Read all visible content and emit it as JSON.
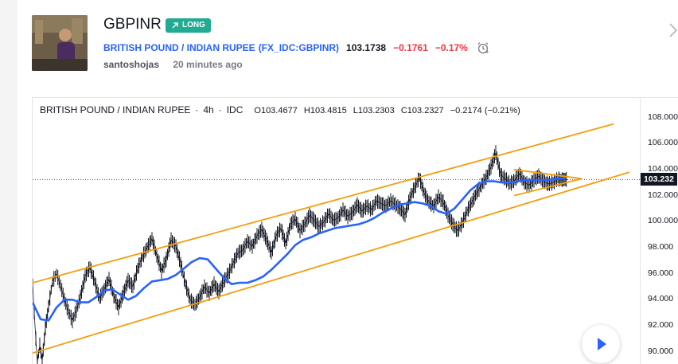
{
  "idea": {
    "title": "GBPINR",
    "badge": "LONG",
    "symbol_name": "BRITISH POUND / INDIAN RUPEE",
    "symbol_code": "(FX_IDC:GBPINR)",
    "price": "103.1738",
    "change": "−0.1761",
    "change_pct": "−0.17%",
    "author": "santoshojas",
    "posted": "20 minutes ago"
  },
  "chart": {
    "name": "BRITISH POUND / INDIAN RUPEE",
    "sep": "·",
    "interval": "4h",
    "source": "IDC",
    "open": "O103.4677",
    "high": "H103.4815",
    "low": "L103.2303",
    "close": "C103.2327",
    "chg": "−0.2174 (−0.21%)",
    "last_price_label": "103.232",
    "y_ticks": [
      "108.000",
      "106.000",
      "104.000",
      "102.000",
      "100.000",
      "98.000",
      "96.000",
      "94.000",
      "92.000",
      "90.000"
    ],
    "colors": {
      "channel": "#f59d0c",
      "ma": "#2962ff",
      "candles": "#131722",
      "down": "#f23645",
      "long_badge": "#22ab94",
      "link": "#2962ff"
    }
  },
  "chart_data": {
    "type": "line",
    "title": "BRITISH POUND / INDIAN RUPEE · 4h · IDC",
    "xlabel": "",
    "ylabel": "",
    "ylim": [
      89,
      109.5
    ],
    "grid": false,
    "series": [
      {
        "x": [
          0,
          2,
          4,
          6,
          9,
          12,
          16,
          20,
          25,
          30,
          35,
          40,
          45,
          50,
          55,
          60,
          66,
          72,
          78,
          84,
          90,
          96,
          102,
          108,
          114,
          120,
          126,
          132,
          138,
          144,
          150,
          156,
          162,
          168,
          174,
          180,
          186,
          192,
          198,
          204,
          210,
          216,
          222,
          228,
          234,
          240,
          246,
          252,
          258,
          264,
          270,
          276,
          282,
          288,
          294,
          300,
          306,
          312,
          318,
          324,
          330,
          336,
          342,
          348,
          354,
          360,
          366,
          372,
          378,
          384,
          390,
          396,
          402,
          408,
          414,
          420,
          426,
          432,
          438,
          444,
          450,
          456,
          462,
          468,
          474,
          480,
          486,
          492,
          498,
          504,
          510,
          516,
          522,
          528,
          534,
          540,
          546,
          552,
          558,
          564,
          570,
          576,
          582,
          588,
          594,
          600,
          606,
          612,
          618,
          624,
          630,
          636,
          642,
          648,
          654,
          660,
          664,
          668,
          672
        ],
        "values": [
          95.2,
          93.0,
          91.0,
          89.2,
          90.5,
          89.3,
          91.8,
          93.5,
          95.4,
          96.0,
          95.1,
          94.0,
          93.1,
          92.4,
          93.2,
          94.2,
          95.8,
          96.5,
          95.4,
          94.1,
          94.8,
          95.6,
          94.3,
          93.4,
          94.5,
          95.5,
          95.0,
          96.4,
          97.3,
          98.0,
          98.7,
          97.4,
          96.2,
          97.1,
          98.6,
          98.1,
          96.8,
          95.2,
          94.0,
          93.6,
          94.2,
          95.0,
          94.5,
          95.2,
          94.6,
          95.4,
          96.0,
          96.8,
          97.6,
          97.8,
          98.5,
          98.1,
          98.9,
          99.4,
          98.6,
          97.6,
          98.9,
          99.5,
          98.3,
          99.8,
          100.2,
          99.3,
          99.8,
          100.5,
          100.1,
          99.6,
          100.0,
          100.6,
          100.1,
          100.3,
          100.9,
          100.4,
          100.7,
          101.3,
          100.8,
          101.2,
          100.9,
          101.6,
          101.4,
          101.2,
          101.6,
          101.3,
          101.0,
          100.5,
          101.8,
          102.6,
          103.4,
          102.2,
          101.5,
          101.2,
          101.9,
          101.5,
          100.5,
          99.8,
          99.3,
          99.9,
          100.8,
          101.5,
          102.2,
          102.8,
          103.4,
          104.2,
          105.3,
          103.6,
          103.3,
          102.9,
          103.2,
          103.7,
          103.0,
          102.8,
          103.2,
          103.5,
          103.1,
          102.9,
          103.0,
          103.3,
          103.2,
          103.25,
          103.23
        ],
        "color": "#131722"
      },
      {
        "x": [
          0,
          10,
          20,
          30,
          40,
          50,
          60,
          70,
          80,
          90,
          100,
          110,
          120,
          130,
          140,
          150,
          160,
          170,
          180,
          190,
          200,
          210,
          220,
          230,
          240,
          250,
          260,
          270,
          280,
          290,
          300,
          310,
          320,
          330,
          340,
          350,
          360,
          370,
          380,
          390,
          400,
          410,
          420,
          430,
          440,
          450,
          460,
          470,
          480,
          490,
          500,
          510,
          520,
          530,
          540,
          550,
          560,
          570,
          580,
          590,
          600,
          610,
          620,
          630,
          640,
          650,
          660,
          670
        ],
        "values": [
          93.8,
          92.5,
          92.4,
          93.4,
          94.0,
          94.0,
          93.8,
          93.8,
          94.2,
          94.7,
          94.8,
          94.4,
          94.0,
          94.3,
          94.9,
          95.4,
          95.5,
          95.6,
          95.9,
          96.4,
          96.9,
          97.2,
          97.1,
          96.4,
          95.7,
          95.2,
          95.3,
          95.3,
          95.5,
          95.8,
          96.3,
          96.9,
          97.5,
          98.2,
          98.6,
          98.8,
          99.1,
          99.3,
          99.5,
          99.6,
          99.7,
          99.8,
          100.0,
          100.3,
          100.7,
          101.0,
          101.3,
          101.4,
          101.5,
          101.4,
          101.2,
          100.8,
          100.6,
          101.0,
          101.7,
          102.4,
          102.9,
          103.1,
          103.1,
          103.0,
          103.0,
          103.1,
          103.2,
          103.2,
          103.2,
          103.2,
          103.3,
          103.3
        ],
        "color": "#2962ff"
      }
    ],
    "lines": [
      {
        "x": [
          0,
          730
        ],
        "y": [
          95.3,
          107.5
        ]
      },
      {
        "x": [
          0,
          750
        ],
        "y": [
          89.9,
          103.8
        ]
      },
      {
        "x": [
          605,
          690
        ],
        "y": [
          104.0,
          103.3
        ]
      },
      {
        "x": [
          605,
          690
        ],
        "y": [
          102.0,
          103.3
        ]
      }
    ],
    "last_price": 103.232,
    "xlim": [
      0,
      763
    ]
  }
}
